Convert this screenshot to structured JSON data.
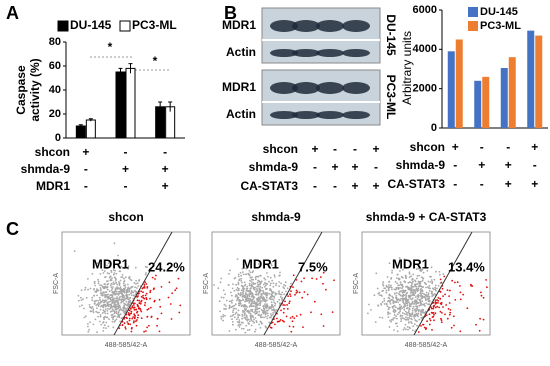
{
  "panel_labels": [
    "A",
    "B",
    "C"
  ],
  "chart_data": [
    {
      "type": "bar",
      "y_label": [
        "Caspase",
        "activity (%)"
      ],
      "categories": [
        null,
        null,
        null
      ],
      "series": [
        {
          "name": "DU-145",
          "color": "#000000",
          "values": [
            10,
            55,
            26
          ],
          "errors": [
            1,
            3,
            4
          ]
        },
        {
          "name": "PC3-ML",
          "color": "#ffffff",
          "values": [
            15,
            58,
            26
          ],
          "errors": [
            1,
            4,
            4
          ]
        }
      ],
      "ylim": [
        0,
        80
      ],
      "yticks": [
        0,
        20,
        40,
        60,
        80
      ],
      "annotations": [
        "*",
        "*"
      ],
      "conditions": [
        {
          "label": "shcon",
          "signs": [
            "+",
            "-",
            "-"
          ]
        },
        {
          "label": "shmda-9",
          "signs": [
            "-",
            "+",
            "+"
          ]
        },
        {
          "label": "MDR1",
          "signs": [
            "-",
            "-",
            "+"
          ]
        }
      ]
    },
    {
      "type": "bar",
      "y_label": "Arbitrary units",
      "categories": [
        null,
        null,
        null,
        null
      ],
      "series": [
        {
          "name": "DU-145",
          "color": "#4472c4",
          "values": [
            3900,
            2400,
            3050,
            4950
          ]
        },
        {
          "name": "PC3-ML",
          "color": "#ed7d31",
          "values": [
            4500,
            2600,
            3600,
            4700
          ]
        }
      ],
      "ylim": [
        0,
        6000
      ],
      "yticks": [
        0,
        2000,
        4000,
        6000
      ],
      "conditions": [
        {
          "label": "shcon",
          "signs": [
            "+",
            "-",
            "-",
            "+"
          ]
        },
        {
          "label": "shmda-9",
          "signs": [
            "-",
            "+",
            "+",
            "-"
          ]
        },
        {
          "label": "CA-STAT3",
          "signs": [
            "-",
            "-",
            "+",
            "+"
          ]
        }
      ]
    }
  ],
  "blots": {
    "cell_lines": [
      "DU-145",
      "PC3-ML"
    ],
    "bands": [
      "MDR1",
      "Actin"
    ],
    "conditions": [
      {
        "label": "shcon",
        "signs": [
          "+",
          "-",
          "-",
          "+"
        ]
      },
      {
        "label": "shmda-9",
        "signs": [
          "-",
          "+",
          "+",
          "-"
        ]
      },
      {
        "label": "CA-STAT3",
        "signs": [
          "-",
          "-",
          "+",
          "+"
        ]
      }
    ]
  },
  "flow": {
    "y_axis": "FSC-A",
    "x_axis": "488-585/42-A",
    "panels": [
      {
        "title": "shcon",
        "marker": "MDR1",
        "percent": "24.2%"
      },
      {
        "title": "shmda-9",
        "marker": "MDR1",
        "percent": "7.5%"
      },
      {
        "title": "shmda-9 + CA-STAT3",
        "marker": "MDR1",
        "percent": "13.4%"
      }
    ]
  }
}
